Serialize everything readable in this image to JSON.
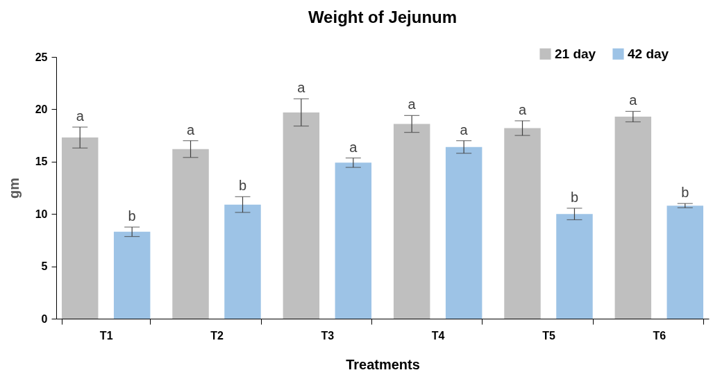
{
  "chart_data": {
    "type": "bar",
    "title": "Weight of Jejunum",
    "xlabel": "Treatments",
    "ylabel": "gm",
    "categories": [
      "T1",
      "T2",
      "T3",
      "T4",
      "T5",
      "T6"
    ],
    "series": [
      {
        "name": "21 day",
        "color": "#bfbfbf",
        "values": [
          17.3,
          16.2,
          19.7,
          18.6,
          18.2,
          19.3
        ],
        "errors": [
          1.0,
          0.8,
          1.3,
          0.8,
          0.7,
          0.5
        ],
        "value_labels": [
          "a",
          "a",
          "a",
          "a",
          "a",
          "a"
        ]
      },
      {
        "name": "42 day",
        "color": "#9dc3e6",
        "values": [
          8.3,
          10.9,
          14.9,
          16.4,
          10.0,
          10.8
        ],
        "errors": [
          0.45,
          0.75,
          0.45,
          0.6,
          0.55,
          0.2
        ],
        "value_labels": [
          "b",
          "b",
          "a",
          "a",
          "b",
          "b"
        ]
      }
    ],
    "ylim": [
      0,
      25
    ],
    "yticks": [
      0,
      5,
      10,
      15,
      20,
      25
    ],
    "grid": false,
    "legend": "top right"
  }
}
